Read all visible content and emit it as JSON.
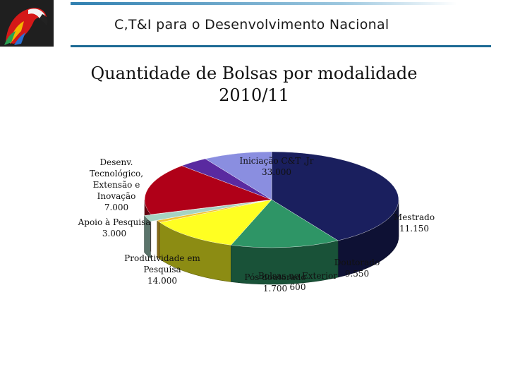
{
  "header": {
    "title": "C,T&I para o Desenvolvimento Nacional"
  },
  "chart_data": {
    "type": "pie",
    "title_line1": "Quantidade de Bolsas por modalidade",
    "title_line2": "2010/11",
    "slices": [
      {
        "label_lines": [
          "Iniciação C&T ,Jr",
          "33.000"
        ],
        "value": 33000,
        "color": "#1a1f5e"
      },
      {
        "label_lines": [
          "Mestrado",
          "11.150"
        ],
        "value": 11150,
        "color": "#2e9566"
      },
      {
        "label_lines": [
          "Doutorado",
          "9.550"
        ],
        "value": 9550,
        "color": "#ffff22"
      },
      {
        "label_lines": [
          "Bolsas no Exterior",
          "600"
        ],
        "value": 600,
        "color": "#f3c12c"
      },
      {
        "label_lines": [
          "Pós doutorado",
          "1.700"
        ],
        "value": 1700,
        "color": "#a6d3c2"
      },
      {
        "label_lines": [
          "Produtividade em",
          "Pesquisa",
          "14.000"
        ],
        "value": 14000,
        "color": "#b00018"
      },
      {
        "label_lines": [
          "Apoio à Pesquisa",
          "3.000"
        ],
        "value": 3000,
        "color": "#5a2aa0"
      },
      {
        "label_lines": [
          "Desenv.",
          "Tecnológico,",
          "Extensão e",
          "Inovação",
          "7.000"
        ],
        "value": 7000,
        "color": "#8a8ee0"
      }
    ]
  }
}
